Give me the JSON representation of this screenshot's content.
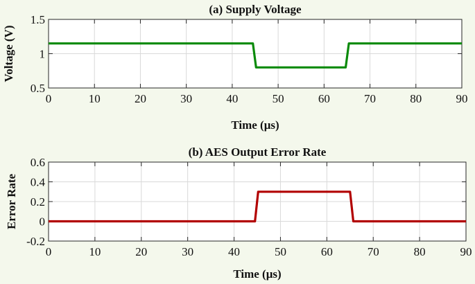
{
  "chart_data": [
    {
      "type": "line",
      "title": "(a) Supply Voltage",
      "xlabel": "Time (μs)",
      "ylabel": "Voltage (V)",
      "xlim": [
        0,
        90
      ],
      "ylim": [
        0.5,
        1.5
      ],
      "xticks": [
        "0",
        "10",
        "20",
        "30",
        "40",
        "50",
        "60",
        "70",
        "80",
        "90"
      ],
      "yticks": [
        "1.5",
        "1",
        "0.5"
      ],
      "grid": true,
      "color": "#0a8a0a",
      "series": [
        {
          "x": [
            0,
            44.5,
            45.2,
            64.7,
            65.4,
            90
          ],
          "y": [
            1.15,
            1.15,
            0.8,
            0.8,
            1.15,
            1.15
          ]
        }
      ]
    },
    {
      "type": "line",
      "title": "(b) AES Output Error Rate",
      "xlabel": "Time (μs)",
      "ylabel": "Error Rate",
      "xlim": [
        0,
        90
      ],
      "ylim": [
        -0.2,
        0.6
      ],
      "xticks": [
        "0",
        "10",
        "20",
        "30",
        "40",
        "50",
        "60",
        "70",
        "80",
        "90"
      ],
      "yticks": [
        "0.6",
        "0.4",
        "0.2",
        "0",
        "-0.2"
      ],
      "grid": true,
      "color": "#b20000",
      "series": [
        {
          "x": [
            0,
            44.5,
            45.2,
            65.0,
            65.7,
            90
          ],
          "y": [
            0,
            0,
            0.3,
            0.3,
            0,
            0
          ]
        }
      ]
    }
  ]
}
